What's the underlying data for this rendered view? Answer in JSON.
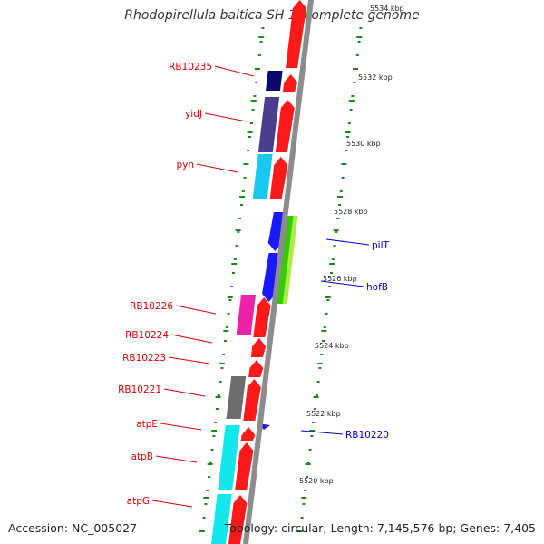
{
  "title": "Rhodopirellula baltica SH 1, complete genome",
  "accession_label": "Accession: NC_005027",
  "topology_label": "Topology: circular; Length: 7,145,576 bp; Genes: 7,405",
  "colors": {
    "backbone": "#8c8c8c",
    "tick": "#1a8a1a",
    "forward_gene": "#ff1a1a",
    "reverse_gene": "#1a1aff",
    "forward_label": "#dd0000",
    "reverse_label": "#0000cc"
  },
  "scale_labels": [
    "5534 kbp",
    "5532 kbp",
    "5530 kbp",
    "5528 kbp",
    "5526 kbp",
    "5524 kbp",
    "5522 kbp",
    "5520 kbp"
  ],
  "forward_gene_labels": [
    "RB10235",
    "yidJ",
    "pyn",
    "RB10226",
    "RB10224",
    "RB10223",
    "RB10221",
    "atpE",
    "atpB",
    "atpG"
  ],
  "reverse_gene_labels": [
    "pilT",
    "hofB",
    "RB10220"
  ]
}
